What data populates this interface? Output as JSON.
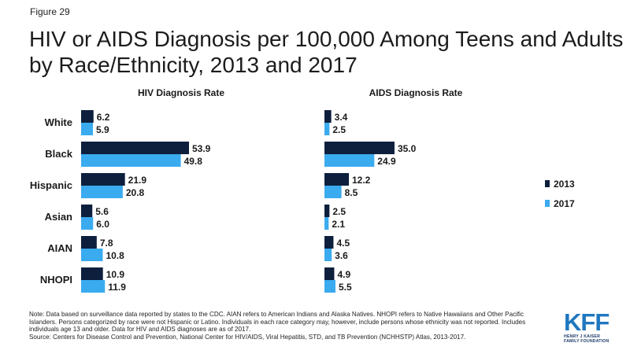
{
  "figure_label": "Figure 29",
  "title": "HIV or AIDS Diagnosis per 100,000 Among Teens and Adults by Race/Ethnicity, 2013 and 2017",
  "colors": {
    "y2013": "#0d1f3c",
    "y2017": "#3aabef"
  },
  "chart_data": {
    "type": "bar",
    "orientation": "horizontal",
    "categories": [
      "White",
      "Black",
      "Hispanic",
      "Asian",
      "AIAN",
      "NHOPI"
    ],
    "legend": {
      "placement": "right",
      "entries": [
        "2013",
        "2017"
      ]
    },
    "panels": [
      {
        "title": "HIV Diagnosis Rate",
        "series": [
          {
            "name": "2013",
            "values": [
              6.2,
              53.9,
              21.9,
              5.6,
              7.8,
              10.9
            ]
          },
          {
            "name": "2017",
            "values": [
              5.9,
              49.8,
              20.8,
              6.0,
              10.8,
              11.9
            ]
          }
        ]
      },
      {
        "title": "AIDS Diagnosis Rate",
        "series": [
          {
            "name": "2013",
            "values": [
              3.4,
              35.0,
              12.2,
              2.5,
              4.5,
              4.9
            ]
          },
          {
            "name": "2017",
            "values": [
              2.5,
              24.9,
              8.5,
              2.1,
              3.6,
              5.5
            ]
          }
        ]
      }
    ]
  },
  "note": "Note: Data based on surveillance data reported by states to the CDC. AIAN refers to American Indians and Alaska Natives. NHOPI refers to Native Hawaiians and Other Pacific Islanders. Persons categorized by race were not Hispanic or Latino. Individuals in each race category may, however, include persons whose ethnicity was not reported. Includes individuals age 13 and older. Data for HIV and AIDS diagnoses are as of 2017.",
  "source": "Source: Centers for Disease Control and Prevention, National Center for HIV/AIDS, Viral Hepatitis, STD, and TB Prevention (NCHHSTP) Atlas, 2013-2017.",
  "logo": {
    "mark": "KFF",
    "sub": "HENRY J KAISER FAMILY FOUNDATION"
  }
}
